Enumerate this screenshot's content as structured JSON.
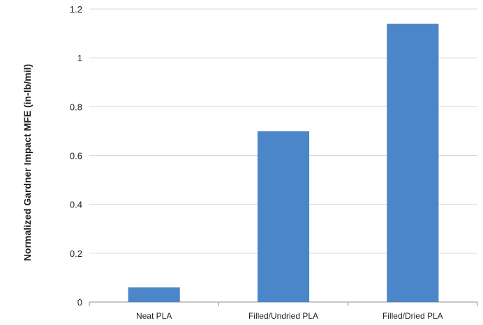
{
  "chart_data": {
    "type": "bar",
    "title": "",
    "xlabel": "",
    "ylabel": "Normalized Gardner Impact MFE (in-lb/mil)",
    "categories": [
      "Neat PLA",
      "Filled/Undried PLA",
      "Filled/Dried PLA"
    ],
    "values": [
      0.06,
      0.7,
      1.14
    ],
    "ylim": [
      0,
      1.2
    ],
    "yticks": [
      "0",
      "0.2",
      "0.4",
      "0.6",
      "0.8",
      "1",
      "1.2"
    ],
    "ytick_values": [
      0,
      0.2,
      0.4,
      0.6,
      0.8,
      1.0,
      1.2
    ],
    "grid": true,
    "legend": "none",
    "colors": {
      "bar": "#4a86c8",
      "grid": "#d9d9d9",
      "axis": "#8c8c8c"
    }
  }
}
